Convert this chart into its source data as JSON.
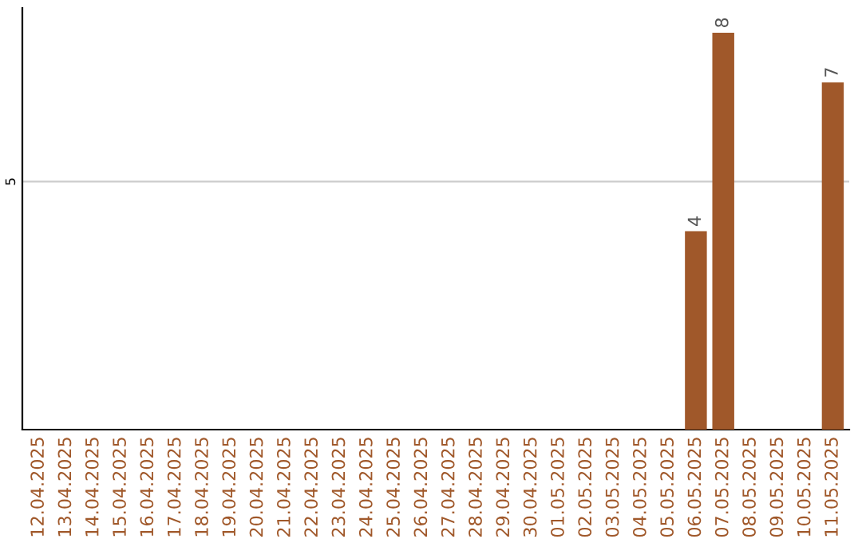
{
  "chart_data": {
    "type": "bar",
    "categories": [
      "12.04.2025",
      "13.04.2025",
      "14.04.2025",
      "15.04.2025",
      "16.04.2025",
      "17.04.2025",
      "18.04.2025",
      "19.04.2025",
      "20.04.2025",
      "21.04.2025",
      "22.04.2025",
      "23.04.2025",
      "24.04.2025",
      "25.04.2025",
      "26.04.2025",
      "27.04.2025",
      "28.04.2025",
      "29.04.2025",
      "30.04.2025",
      "01.05.2025",
      "02.05.2025",
      "03.05.2025",
      "04.05.2025",
      "05.05.2025",
      "06.05.2025",
      "07.05.2025",
      "08.05.2025",
      "09.05.2025",
      "10.05.2025",
      "11.05.2025"
    ],
    "values": [
      null,
      null,
      null,
      null,
      null,
      null,
      null,
      null,
      null,
      null,
      null,
      null,
      null,
      null,
      null,
      null,
      null,
      null,
      null,
      null,
      null,
      null,
      null,
      null,
      4,
      8,
      null,
      null,
      null,
      7
    ],
    "data_labels": true,
    "color": "#a0582a",
    "ylim": [
      0,
      8.5
    ],
    "yticks": [
      5
    ],
    "grid": "y"
  }
}
